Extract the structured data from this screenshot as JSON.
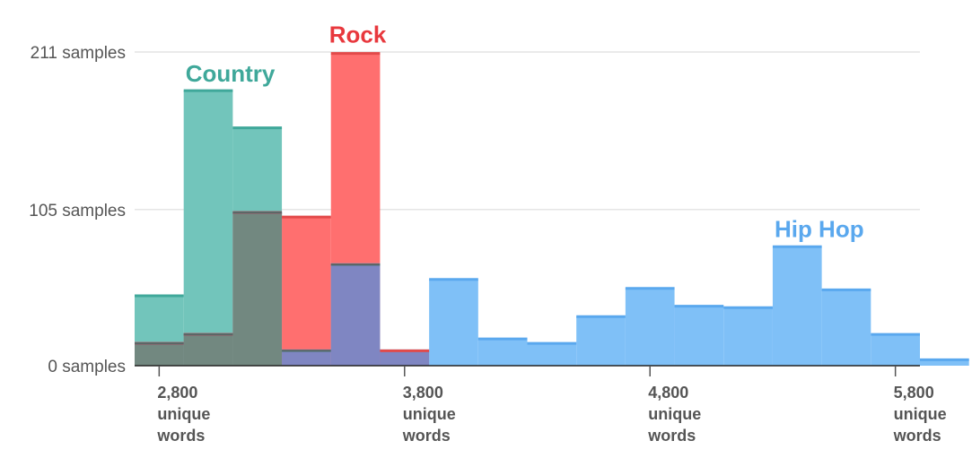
{
  "chart_data": {
    "type": "histogram",
    "title": "",
    "xlabel": "",
    "ylabel": "",
    "bin_width": 200,
    "x_start": 2700,
    "ylim": [
      0,
      211
    ],
    "xlim": [
      2700,
      5900
    ],
    "grid": true,
    "yticks": [
      {
        "value": 0,
        "label": "0 samples"
      },
      {
        "value": 105,
        "label": "105 samples"
      },
      {
        "value": 211,
        "label": "211 samples"
      }
    ],
    "xticks": [
      {
        "value": 2800,
        "lines": [
          "2,800",
          "unique",
          "words"
        ]
      },
      {
        "value": 3800,
        "lines": [
          "3,800",
          "unique",
          "words"
        ]
      },
      {
        "value": 4800,
        "lines": [
          "4,800",
          "unique",
          "words"
        ]
      },
      {
        "value": 5800,
        "lines": [
          "5,800",
          "unique",
          "words"
        ]
      }
    ],
    "series": [
      {
        "name": "Hip Hop",
        "color": "#7fc0f7",
        "line": "#5aa8ee",
        "values": [
          15,
          21,
          103,
          10,
          68,
          10,
          58,
          18,
          15,
          33,
          52,
          40,
          39,
          80,
          51,
          21,
          4
        ]
      },
      {
        "name": "Rock",
        "color": "#ff6f6f",
        "line": "#e24a4a",
        "values": [
          15,
          21,
          103,
          100,
          210,
          10
        ]
      },
      {
        "name": "Country",
        "color": "#72c5bb",
        "line": "#3fa89a",
        "values": [
          47,
          185,
          160
        ]
      }
    ],
    "overlap_colors": {
      "hiphop_country": "#728880",
      "hiphop_rock": "#7f86c2"
    },
    "labels": [
      {
        "text": "Country",
        "color": "#3fa89a"
      },
      {
        "text": "Rock",
        "color": "#e8383d"
      },
      {
        "text": "Hip Hop",
        "color": "#5aa8ee"
      }
    ]
  }
}
